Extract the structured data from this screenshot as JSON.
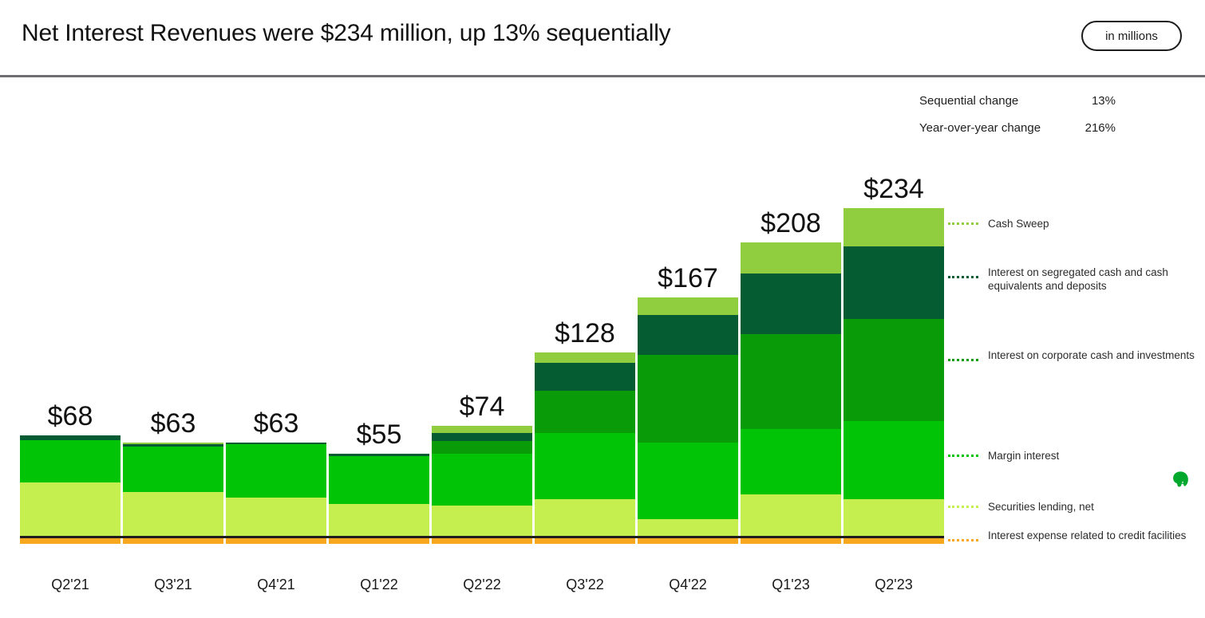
{
  "header": {
    "title": "Net Interest Revenues were $234 million, up 13% sequentially",
    "badge": "in millions"
  },
  "stats": {
    "rows": [
      {
        "label": "Sequential change",
        "value": "13%"
      },
      {
        "label": "Year-over-year change",
        "value": "216%"
      }
    ]
  },
  "colors": {
    "cash_sweep": "#90ce3f",
    "segregated": "#055c33",
    "corporate": "#0a9c08",
    "margin": "#00c405",
    "securities": "#c5ee4f",
    "expense": "#f8a81f",
    "axis": "#1e1e1e",
    "logo_green": "#00a82d"
  },
  "icons": {
    "evernote_logo": "evernote-elephant"
  },
  "chart_data": {
    "type": "bar",
    "subtype": "stacked-with-negative",
    "categories": [
      "Q2'21",
      "Q3'21",
      "Q4'21",
      "Q1'22",
      "Q2'22",
      "Q3'22",
      "Q4'22",
      "Q1'23",
      "Q2'23"
    ],
    "bar_labels": [
      "$68",
      "$63",
      "$63",
      "$55",
      "$74",
      "$128",
      "$167",
      "$208",
      "$234"
    ],
    "net_values": [
      68,
      63,
      63,
      55,
      74,
      128,
      167,
      208,
      234
    ],
    "value_prefix": "$",
    "units": "millions USD",
    "grid": false,
    "legend_position": "right",
    "baseline": 0,
    "series": [
      {
        "name": "Cash Sweep",
        "color": "#90ce3f",
        "values": [
          0,
          1,
          0,
          0,
          5,
          8,
          13,
          23,
          28
        ]
      },
      {
        "name": "Interest on segregated cash and cash equivalents and deposits",
        "color": "#055c33",
        "values": [
          3,
          2,
          1,
          2,
          6,
          20,
          29,
          44,
          53
        ]
      },
      {
        "name": "Interest on corporate cash and investments",
        "color": "#0a9c08",
        "values": [
          0,
          0,
          0,
          0,
          9,
          31,
          64,
          69,
          74
        ]
      },
      {
        "name": "Margin interest",
        "color": "#00c405",
        "values": [
          31,
          33,
          39,
          35,
          38,
          48,
          56,
          48,
          57
        ]
      },
      {
        "name": "Securities lending, net",
        "color": "#c5ee4f",
        "values": [
          39,
          32,
          28,
          23,
          22,
          27,
          12,
          30,
          27
        ]
      },
      {
        "name": "Interest expense related to credit facilities",
        "color": "#f8a81f",
        "values": [
          -6,
          -6,
          -6,
          -6,
          -6,
          -6,
          -6,
          -6,
          -6
        ]
      }
    ]
  }
}
